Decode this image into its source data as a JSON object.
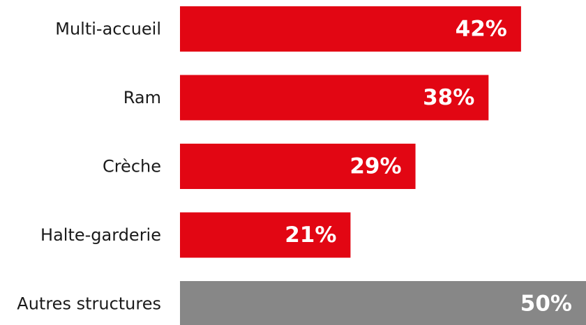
{
  "chart_data": {
    "type": "bar",
    "orientation": "horizontal",
    "categories": [
      "Multi-accueil",
      "Ram",
      "Crèche",
      "Halte-garderie",
      "Autres structures"
    ],
    "values": [
      42,
      38,
      29,
      21,
      50
    ],
    "value_labels": [
      "42%",
      "38%",
      "29%",
      "21%",
      "50%"
    ],
    "bar_colors": [
      "#e20613",
      "#e20613",
      "#e20613",
      "#e20613",
      "#878787"
    ],
    "xlim": [
      0,
      50
    ],
    "grid": false,
    "legend": "none",
    "title": "",
    "xlabel": "",
    "ylabel": ""
  }
}
